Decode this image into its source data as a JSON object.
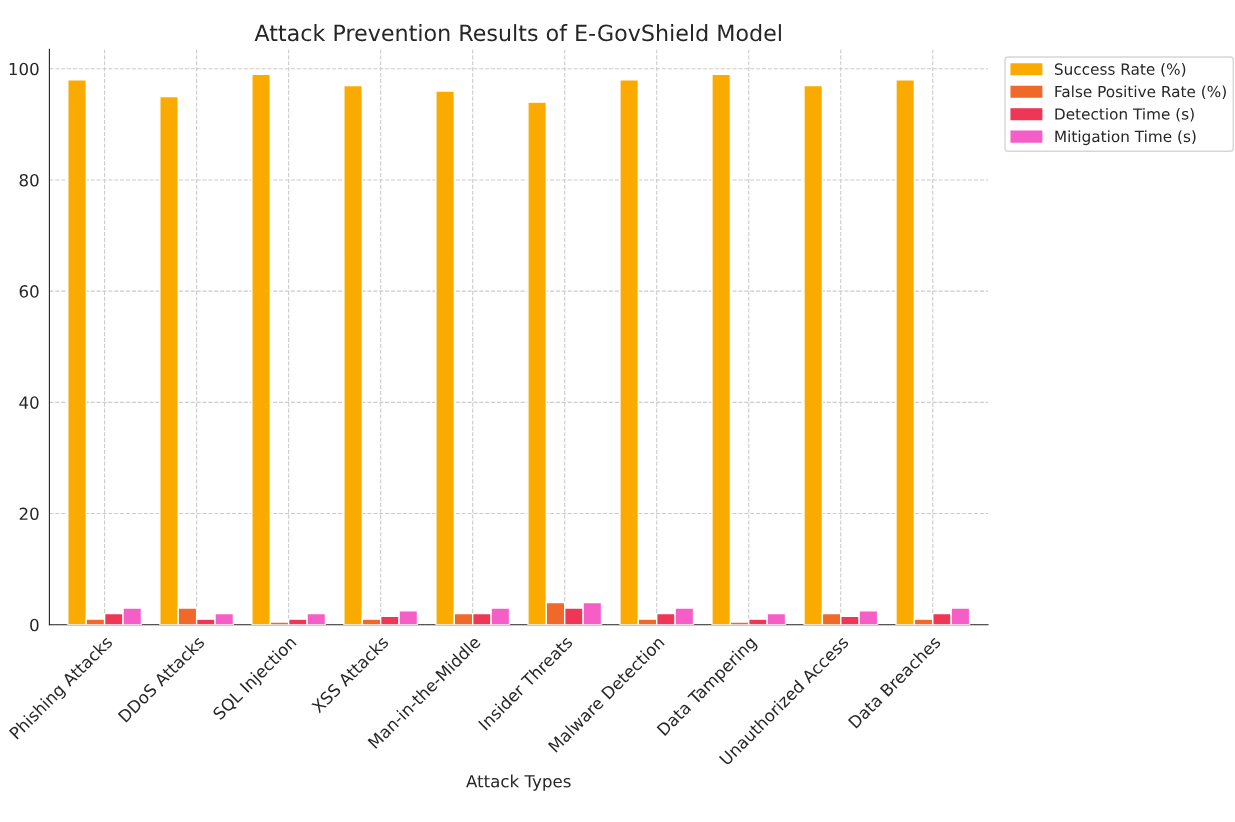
{
  "chart_data": {
    "type": "bar",
    "title": "Attack Prevention Results of E-GovShield Model",
    "xlabel": "Attack Types",
    "categories": [
      "Phishing Attacks",
      "DDoS Attacks",
      "SQL Injection",
      "XSS Attacks",
      "Man-in-the-Middle",
      "Insider Threats",
      "Malware Detection",
      "Data Tampering",
      "Unauthorized Access",
      "Data Breaches"
    ],
    "series": [
      {
        "name": "Success Rate (%)",
        "color": "#fbab00",
        "values": [
          98,
          95,
          99,
          97,
          96,
          94,
          98,
          99,
          97,
          98
        ]
      },
      {
        "name": "False Positive Rate (%)",
        "color": "#f0692a",
        "values": [
          1,
          3,
          0.5,
          1,
          2,
          4,
          1,
          0.5,
          2,
          1
        ]
      },
      {
        "name": "Detection Time (s)",
        "color": "#ee3656",
        "values": [
          2,
          1,
          1,
          1.5,
          2,
          3,
          2,
          1,
          1.5,
          2
        ]
      },
      {
        "name": "Mitigation Time (s)",
        "color": "#f45ec6",
        "values": [
          3,
          2,
          2,
          2.5,
          3,
          4,
          3,
          2,
          2.5,
          3
        ]
      }
    ],
    "ylim": [
      0,
      103.5
    ],
    "yticks": [
      0,
      20,
      40,
      60,
      80,
      100
    ],
    "grid": true,
    "legend": "top right"
  }
}
